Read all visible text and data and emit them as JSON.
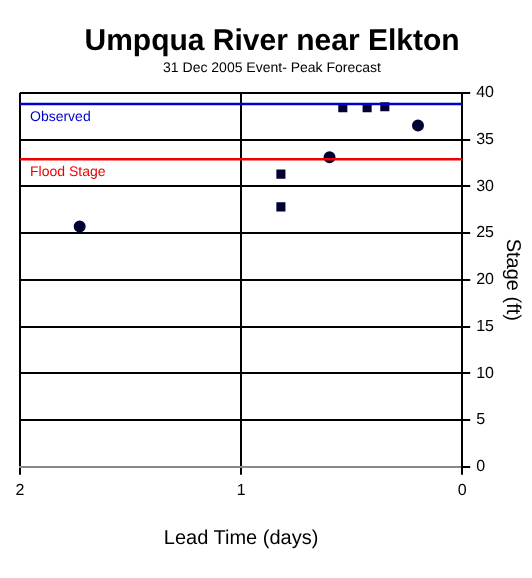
{
  "chart_data": {
    "type": "scatter",
    "title": "Umpqua River near Elkton",
    "subtitle": "31 Dec 2005 Event- Peak Forecast",
    "xlabel": "Lead Time (days)",
    "ylabel": "Stage (ft)",
    "series": [
      {
        "color": "#000033",
        "marker": "circle",
        "x": [
          1.73,
          0.6,
          0.2
        ],
        "values": [
          25.7,
          33.1,
          36.5
        ]
      },
      {
        "color": "#000033",
        "marker": "square",
        "x": [
          0.82,
          0.82,
          0.54,
          0.43,
          0.35
        ],
        "values": [
          31.3,
          27.8,
          38.4,
          38.4,
          38.5
        ]
      }
    ],
    "xlim": [
      2,
      0
    ],
    "xticks": [
      2,
      1,
      0
    ],
    "ylim": [
      0,
      40
    ],
    "yticks": [
      0,
      5,
      10,
      15,
      20,
      25,
      30,
      35,
      40
    ],
    "grid": true,
    "legend": false,
    "ref_lines": [
      {
        "axis": "y",
        "value": 38.8,
        "label": "Observed",
        "color": "#0000cc"
      },
      {
        "axis": "y",
        "value": 32.9,
        "label": "Flood Stage",
        "color": "#ee0000"
      }
    ]
  }
}
